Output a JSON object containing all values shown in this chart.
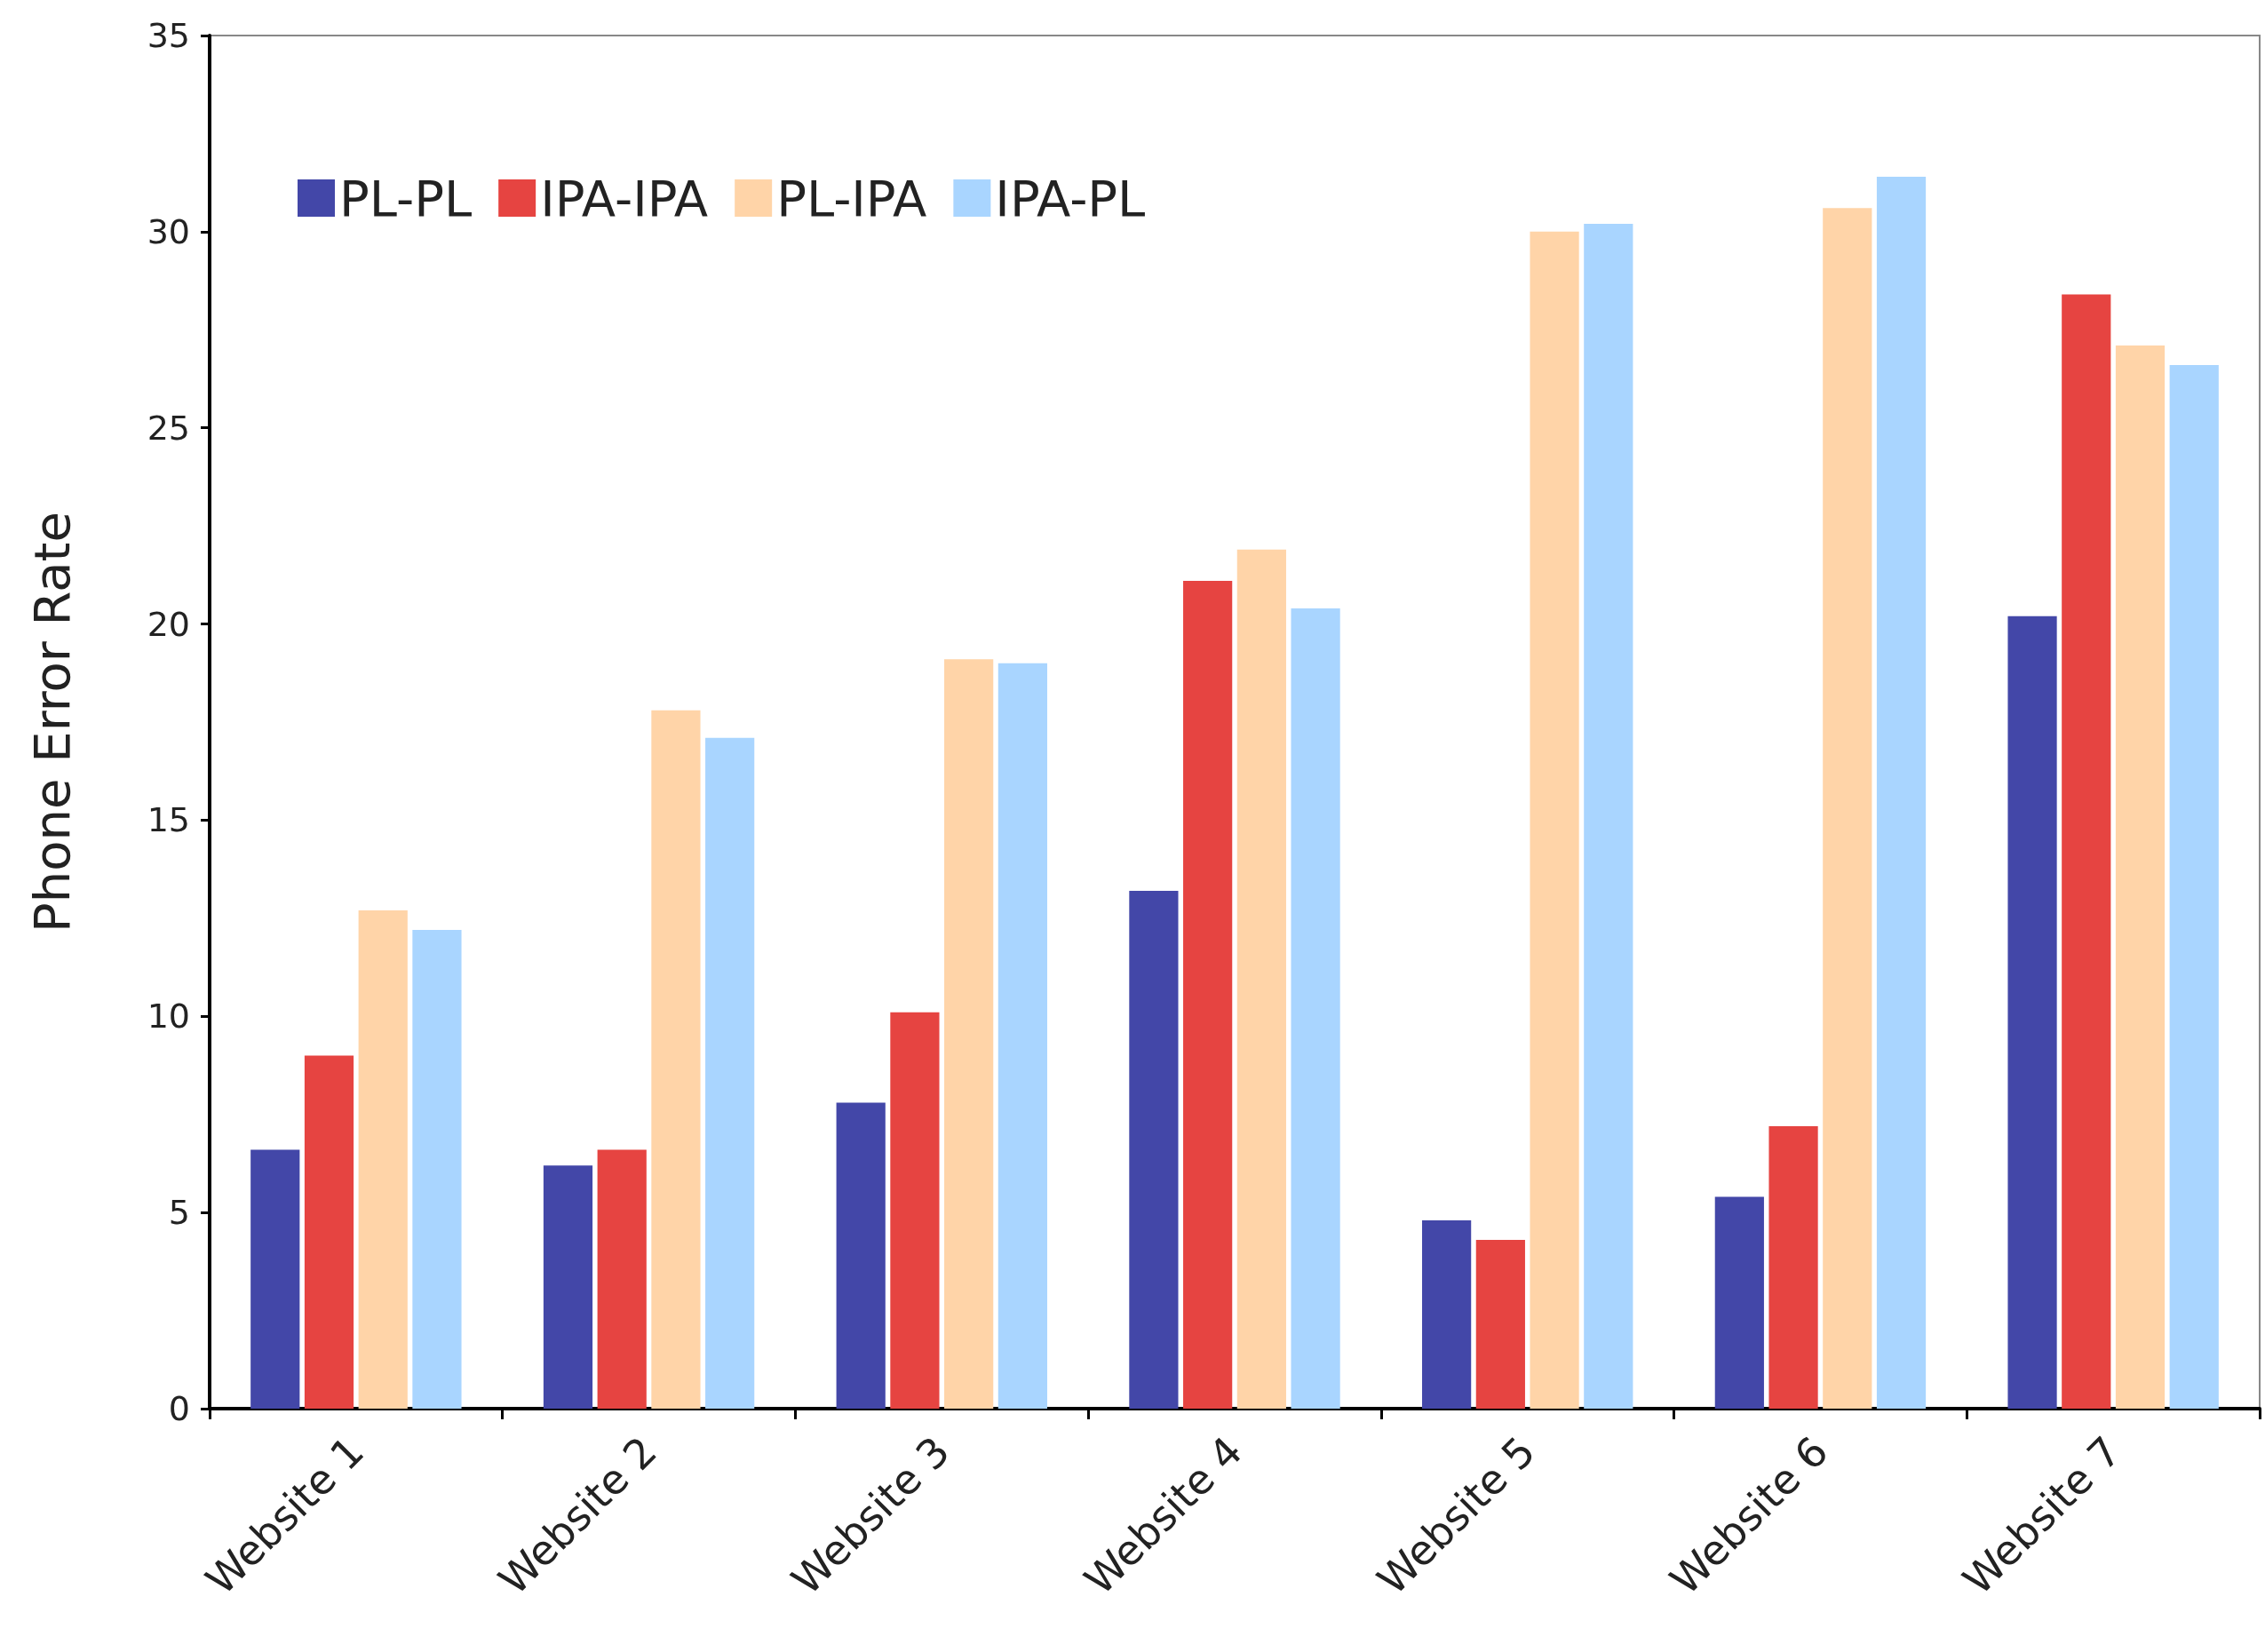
{
  "chart_data": {
    "type": "bar",
    "ylabel": "Phone Error Rate",
    "categories": [
      "Website 1",
      "Website 2",
      "Website 3",
      "Website 4",
      "Website 5",
      "Website 6",
      "Website 7"
    ],
    "series": [
      {
        "name": "PL-PL",
        "color": "#4347a8",
        "values": [
          6.6,
          6.2,
          7.8,
          13.2,
          4.8,
          5.4,
          20.2
        ]
      },
      {
        "name": "IPA-IPA",
        "color": "#e64441",
        "values": [
          9.0,
          6.6,
          10.1,
          21.1,
          4.3,
          7.2,
          28.4
        ]
      },
      {
        "name": "PL-IPA",
        "color": "#ffd4a8",
        "values": [
          12.7,
          17.8,
          19.1,
          21.9,
          30.0,
          30.6,
          27.1
        ]
      },
      {
        "name": "IPA-PL",
        "color": "#a9d5ff",
        "values": [
          12.2,
          17.1,
          19.0,
          20.4,
          30.2,
          31.4,
          26.6
        ]
      }
    ],
    "ylim": [
      0,
      35
    ],
    "yticks": [
      0,
      5,
      10,
      15,
      20,
      25,
      30,
      35
    ],
    "grid": false,
    "legend": "top left"
  }
}
